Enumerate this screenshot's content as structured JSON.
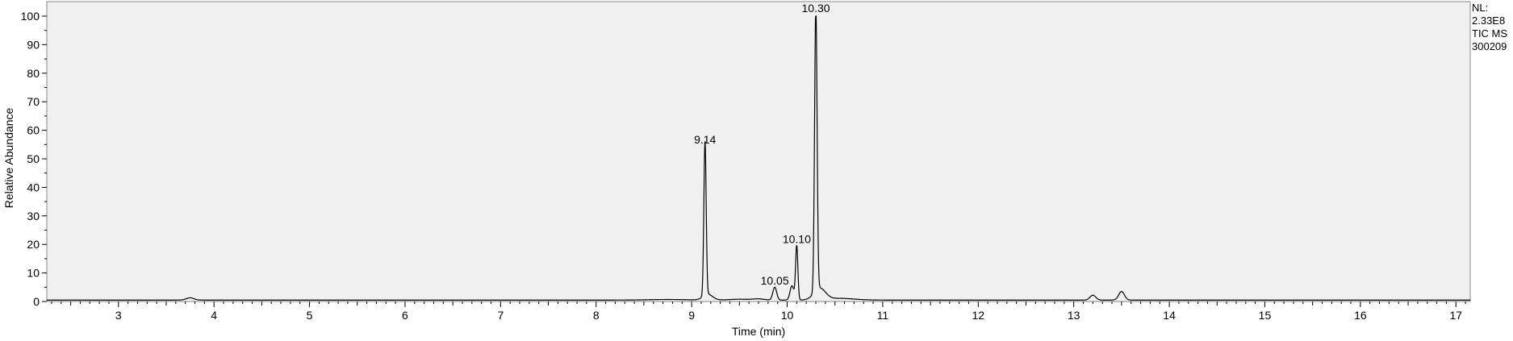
{
  "chart_data": {
    "type": "line",
    "xlabel": "Time (min)",
    "ylabel": "Relative Abundance",
    "xlim": [
      2.25,
      17.15
    ],
    "ylim": [
      0,
      100
    ],
    "x_ticks": [
      3,
      4,
      5,
      6,
      7,
      8,
      9,
      10,
      11,
      12,
      13,
      14,
      15,
      16,
      17
    ],
    "y_ticks": [
      0,
      10,
      20,
      30,
      40,
      50,
      60,
      70,
      80,
      90,
      100
    ],
    "grid": false,
    "baseline": 0.5,
    "series": [
      {
        "color": "#000000",
        "peaks": [
          {
            "x": 3.75,
            "y": 0.8,
            "w": 0.04
          },
          {
            "x": 8.75,
            "y": 0.2,
            "w": 0.2
          },
          {
            "x": 9.14,
            "y": 54,
            "w": 0.012
          },
          {
            "x": 9.17,
            "y": 2,
            "w": 0.05
          },
          {
            "x": 9.5,
            "y": 0.3,
            "w": 0.1
          },
          {
            "x": 9.7,
            "y": 0.4,
            "w": 0.06
          },
          {
            "x": 9.87,
            "y": 4.5,
            "w": 0.02
          },
          {
            "x": 10.05,
            "y": 5,
            "w": 0.02
          },
          {
            "x": 10.1,
            "y": 19,
            "w": 0.012
          },
          {
            "x": 10.3,
            "y": 100,
            "w": 0.013
          },
          {
            "x": 10.34,
            "y": 4,
            "w": 0.06
          },
          {
            "x": 10.55,
            "y": 0.6,
            "w": 0.15
          },
          {
            "x": 13.2,
            "y": 1.7,
            "w": 0.03
          },
          {
            "x": 13.5,
            "y": 3,
            "w": 0.03
          }
        ]
      }
    ],
    "peak_labels": [
      {
        "x": 9.14,
        "y": 54,
        "text": "9.14"
      },
      {
        "x": 9.87,
        "y": 4.5,
        "text": "10.05"
      },
      {
        "x": 10.1,
        "y": 19,
        "text": "10.10"
      },
      {
        "x": 10.3,
        "y": 100,
        "text": "10.30"
      }
    ]
  },
  "info": {
    "nl_label": "NL:",
    "nl_value": "2.33E8",
    "scan_filter": "TIC  MS",
    "sample_id": "300209"
  }
}
